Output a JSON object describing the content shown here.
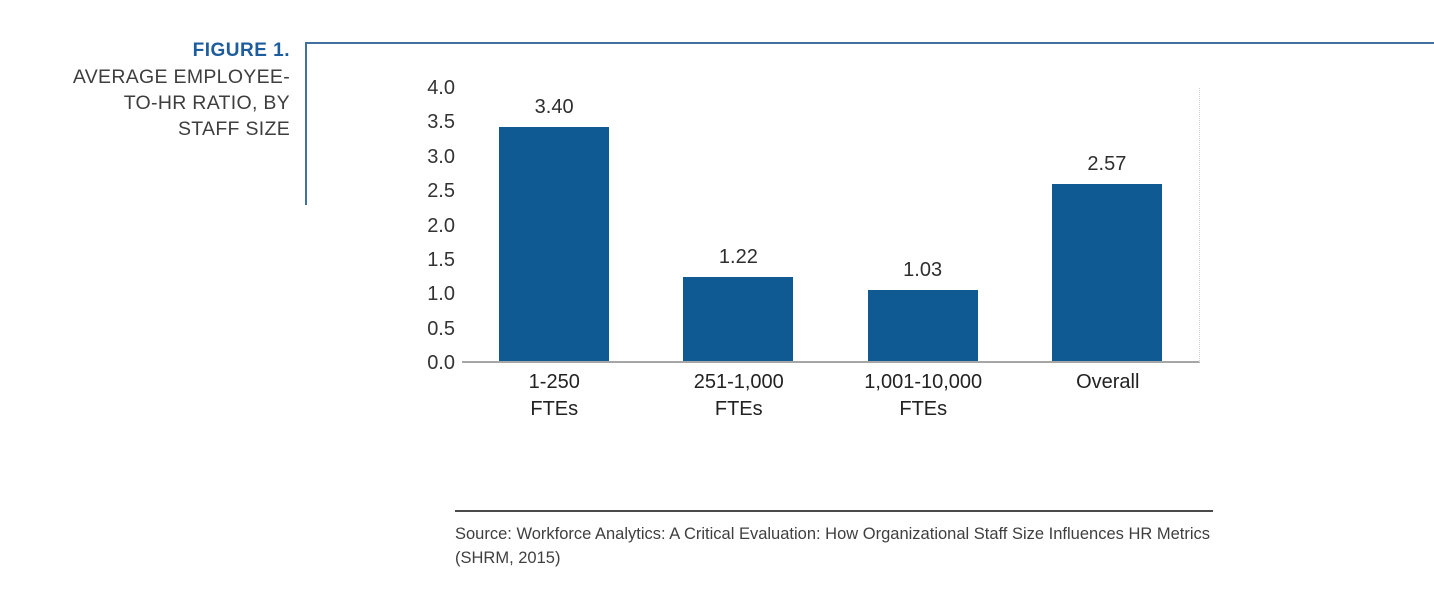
{
  "figure": {
    "label": "FIGURE 1.",
    "title_lines": [
      "AVERAGE EMPLOYEE-",
      "TO-HR RATIO, BY",
      "STAFF SIZE"
    ]
  },
  "chart_data": {
    "type": "bar",
    "title": "Average Employee-to-HR Ratio, by Staff Size",
    "categories": [
      "1-250 FTEs",
      "251-1,000 FTEs",
      "1,001-10,000 FTEs",
      "Overall"
    ],
    "category_lines": [
      [
        "1-250",
        "FTEs"
      ],
      [
        "251-1,000",
        "FTEs"
      ],
      [
        "1,001-10,000",
        "FTEs"
      ],
      [
        "Overall"
      ]
    ],
    "values": [
      3.4,
      1.22,
      1.03,
      2.57
    ],
    "value_labels": [
      "3.40",
      "1.22",
      "1.03",
      "2.57"
    ],
    "xlabel": "",
    "ylabel": "",
    "ylim": [
      0,
      4
    ],
    "ytick_step": 0.5,
    "ytick_labels": [
      "0.0",
      "0.5",
      "1.0",
      "1.5",
      "2.0",
      "2.5",
      "3.0",
      "3.5",
      "4.0"
    ],
    "grid": false,
    "legend": false
  },
  "source": {
    "text": "Source: Workforce Analytics: A Critical Evaluation: How Organizational Staff Size Influences HR Metrics (SHRM, 2015)"
  },
  "colors": {
    "bar": "#0f5a93",
    "accent_blue": "#1d5c9d",
    "frame_line": "#41729f",
    "axis_line": "#a6a6a6",
    "text_dark": "#333333"
  }
}
